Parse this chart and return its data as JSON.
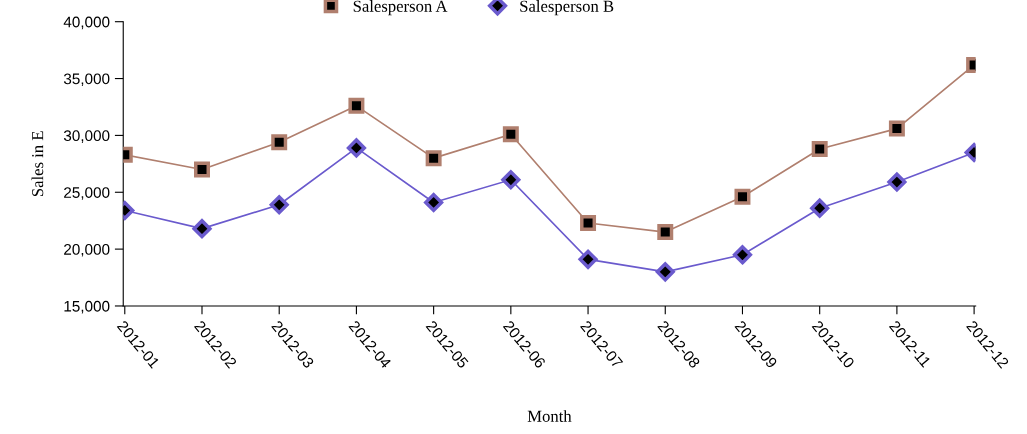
{
  "chart_data": {
    "type": "line",
    "xlabel": "Month",
    "ylabel": "Sales in E",
    "categories": [
      "2012-01",
      "2012-02",
      "2012-03",
      "2012-04",
      "2012-05",
      "2012-06",
      "2012-07",
      "2012-08",
      "2012-09",
      "2012-10",
      "2012-11",
      "2012-12"
    ],
    "series": [
      {
        "name": "Salesperson A",
        "color": "#b07f6e",
        "marker": "square",
        "values": [
          28300,
          27000,
          29400,
          32600,
          28000,
          30100,
          22300,
          21500,
          24600,
          28800,
          30600,
          36200
        ]
      },
      {
        "name": "Salesperson B",
        "color": "#6a5acd",
        "marker": "diamond",
        "values": [
          23400,
          21800,
          23900,
          28900,
          24100,
          26100,
          19100,
          18000,
          19500,
          23600,
          25900,
          28500
        ]
      }
    ],
    "ylim": [
      15000,
      40000
    ],
    "yticks": [
      {
        "value": 15000,
        "label": "15,000"
      },
      {
        "value": 20000,
        "label": "20,000"
      },
      {
        "value": 25000,
        "label": "25,000"
      },
      {
        "value": 30000,
        "label": "30,000"
      },
      {
        "value": 35000,
        "label": "35,000"
      },
      {
        "value": 40000,
        "label": "40,000"
      }
    ],
    "grid": false,
    "legend": "top",
    "line_style": "solid"
  }
}
